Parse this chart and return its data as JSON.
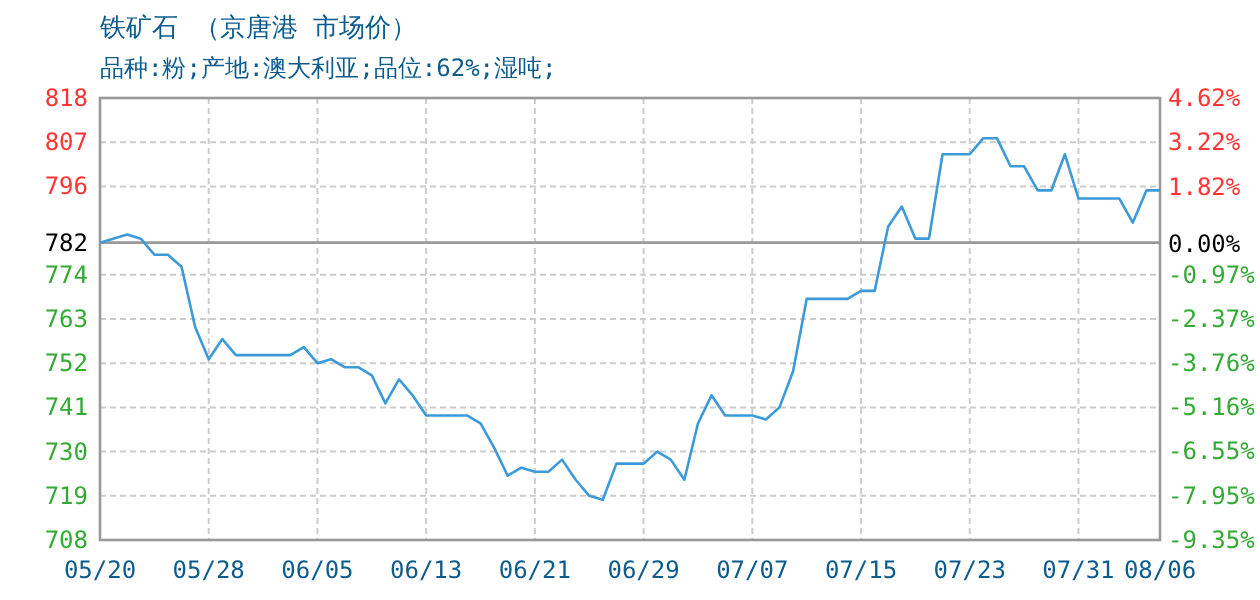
{
  "chart_data": {
    "type": "line",
    "title": "铁矿石 （京唐港 市场价）",
    "subtitle": "品种:粉;产地:澳大利亚;品位:62%;湿吨;",
    "x": [
      "--05-20",
      "--05-22",
      "--05-23",
      "--05-24",
      "--05-25",
      "--05-26",
      "--05-27",
      "--05-28",
      "--05-29",
      "--05-30",
      "--06-03",
      "--06-04",
      "--06-05",
      "--06-06",
      "--06-07",
      "--06-08",
      "--06-09",
      "--06-10",
      "--06-11",
      "--06-12",
      "--06-13",
      "--06-16",
      "--06-17",
      "--06-18",
      "--06-19",
      "--06-20",
      "--06-21",
      "--06-22",
      "--06-23",
      "--06-24",
      "--06-25",
      "--06-26",
      "--06-27",
      "--06-29",
      "--06-30",
      "--07-01",
      "--07-02",
      "--07-03",
      "--07-04",
      "--07-05",
      "--07-07",
      "--07-08",
      "--07-09",
      "--07-10",
      "--07-11",
      "--07-14",
      "--07-15",
      "--07-16",
      "--07-17",
      "--07-18",
      "--07-19",
      "--07-20",
      "--07-21",
      "--07-23",
      "--07-24",
      "--07-25",
      "--07-26",
      "--07-27",
      "--07-28",
      "--07-29",
      "--07-30",
      "--07-31",
      "--08-03",
      "--08-04",
      "--08-05",
      "--08-06"
    ],
    "series": [
      {
        "color": "#3d9ad8",
        "values": [
          782,
          784,
          783,
          779,
          779,
          776,
          761,
          753,
          758,
          754,
          754,
          756,
          752,
          753,
          751,
          751,
          749,
          742,
          748,
          744,
          739,
          739,
          737,
          731,
          724,
          726,
          725,
          725,
          728,
          723,
          719,
          718,
          727,
          727,
          730,
          728,
          723,
          737,
          744,
          739,
          739,
          738,
          741,
          750,
          768,
          768,
          770,
          770,
          786,
          791,
          783,
          783,
          804,
          804,
          808,
          808,
          801,
          801,
          795,
          795,
          804,
          793,
          793,
          787,
          795,
          795
        ]
      }
    ],
    "xlim": [
      "--05-20",
      "--08-06"
    ],
    "xticks": [
      {
        "value": "--05-20",
        "label": "05/20"
      },
      {
        "value": "--05-28",
        "label": "05/28"
      },
      {
        "value": "--06-05",
        "label": "06/05"
      },
      {
        "value": "--06-13",
        "label": "06/13"
      },
      {
        "value": "--06-21",
        "label": "06/21"
      },
      {
        "value": "--06-29",
        "label": "06/29"
      },
      {
        "value": "--07-07",
        "label": "07/07"
      },
      {
        "value": "--07-15",
        "label": "07/15"
      },
      {
        "value": "--07-23",
        "label": "07/23"
      },
      {
        "value": "--07-31",
        "label": "07/31"
      },
      {
        "value": "--08-06",
        "label": "08/06"
      }
    ],
    "ylim": [
      708,
      818
    ],
    "yticks": [
      708,
      719,
      730,
      741,
      752,
      763,
      774,
      782,
      796,
      807,
      818
    ],
    "y2lim": [
      -9.35,
      4.62
    ],
    "y2ticks": [
      {
        "value": -9.35,
        "label": "-9.35%"
      },
      {
        "value": -7.95,
        "label": "-7.95%"
      },
      {
        "value": -6.55,
        "label": "-6.55%"
      },
      {
        "value": -5.16,
        "label": "-5.16%"
      },
      {
        "value": -3.76,
        "label": "-3.76%"
      },
      {
        "value": -2.37,
        "label": "-2.37%"
      },
      {
        "value": -0.97,
        "label": "-0.97%"
      },
      {
        "value": 0,
        "label": "0.00%"
      },
      {
        "value": 1.82,
        "label": "1.82%"
      },
      {
        "value": 3.22,
        "label": "3.22%"
      },
      {
        "value": 4.62,
        "label": "4.62%"
      }
    ],
    "ref_lines": [
      {
        "axis": "y",
        "value": 782,
        "color": "#999999"
      }
    ],
    "grid": true
  }
}
